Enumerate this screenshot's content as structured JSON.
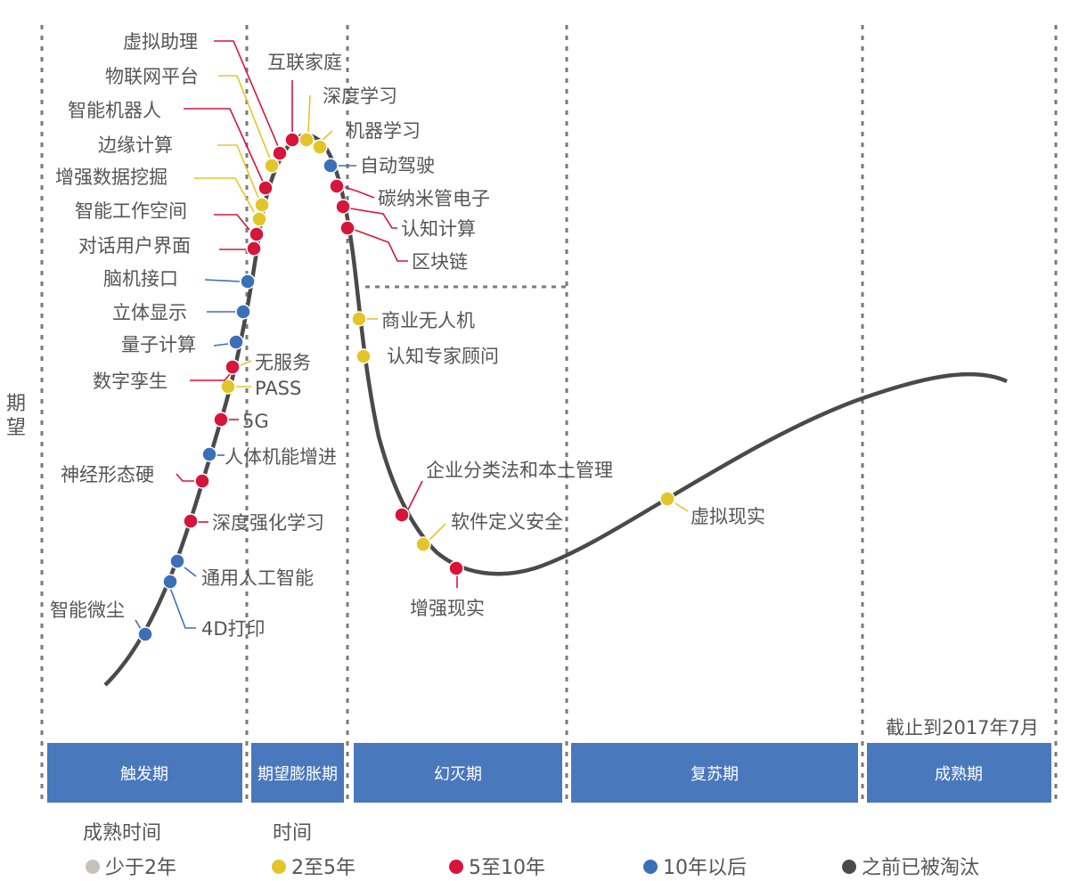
{
  "y_axis_label": [
    "期",
    "望"
  ],
  "cutoff_note": "截止到2017年7月",
  "phases": [
    {
      "key": "trigger",
      "label": "触发期"
    },
    {
      "key": "peak",
      "label": "期望膨胀期"
    },
    {
      "key": "trough",
      "label": "幻灭期"
    },
    {
      "key": "slope",
      "label": "复苏期"
    },
    {
      "key": "plateau",
      "label": "成熟期"
    }
  ],
  "legend": {
    "title_left": "成熟时间",
    "title_right": "时间",
    "items": [
      {
        "key": "lt2",
        "label": "少于2年",
        "color": "#c7c1bb"
      },
      {
        "key": "2to5",
        "label": "2至5年",
        "color": "#e3c52a"
      },
      {
        "key": "5to10",
        "label": "5至10年",
        "color": "#d6153a"
      },
      {
        "key": "gt10",
        "label": "10年以后",
        "color": "#3b6fb8"
      },
      {
        "key": "obsolete",
        "label": "之前已被淘汰",
        "color": "#4a4a4a"
      }
    ]
  },
  "technologies": [
    {
      "name": "智能微尘",
      "maturity": "gt10"
    },
    {
      "name": "4D打印",
      "maturity": "gt10"
    },
    {
      "name": "通用人工智能",
      "maturity": "gt10"
    },
    {
      "name": "深度强化学习",
      "maturity": "5to10"
    },
    {
      "name": "神经形态硬",
      "maturity": "5to10"
    },
    {
      "name": "人体机能增进",
      "maturity": "gt10"
    },
    {
      "name": "5G",
      "maturity": "5to10"
    },
    {
      "name": "无服务",
      "maturity": "2to5"
    },
    {
      "name": "PASS",
      "maturity": "2to5"
    },
    {
      "name": "数字孪生",
      "maturity": "5to10"
    },
    {
      "name": "量子计算",
      "maturity": "gt10"
    },
    {
      "name": "立体显示",
      "maturity": "gt10"
    },
    {
      "name": "脑机接口",
      "maturity": "gt10"
    },
    {
      "name": "对话用户界面",
      "maturity": "5to10"
    },
    {
      "name": "智能工作空间",
      "maturity": "5to10"
    },
    {
      "name": "增强数据挖掘",
      "maturity": "2to5"
    },
    {
      "name": "边缘计算",
      "maturity": "2to5"
    },
    {
      "name": "智能机器人",
      "maturity": "5to10"
    },
    {
      "name": "物联网平台",
      "maturity": "2to5"
    },
    {
      "name": "虚拟助理",
      "maturity": "5to10"
    },
    {
      "name": "互联家庭",
      "maturity": "5to10"
    },
    {
      "name": "深度学习",
      "maturity": "2to5"
    },
    {
      "name": "机器学习",
      "maturity": "2to5"
    },
    {
      "name": "自动驾驶",
      "maturity": "gt10"
    },
    {
      "name": "碳纳米管电子",
      "maturity": "5to10"
    },
    {
      "name": "认知计算",
      "maturity": "5to10"
    },
    {
      "name": "区块链",
      "maturity": "5to10"
    },
    {
      "name": "商业无人机",
      "maturity": "2to5"
    },
    {
      "name": "认知专家顾问",
      "maturity": "2to5"
    },
    {
      "name": "企业分类法和本土管理",
      "maturity": "5to10"
    },
    {
      "name": "软件定义安全",
      "maturity": "2to5"
    },
    {
      "name": "增强现实",
      "maturity": "5to10"
    },
    {
      "name": "虚拟现实",
      "maturity": "2to5"
    }
  ]
}
